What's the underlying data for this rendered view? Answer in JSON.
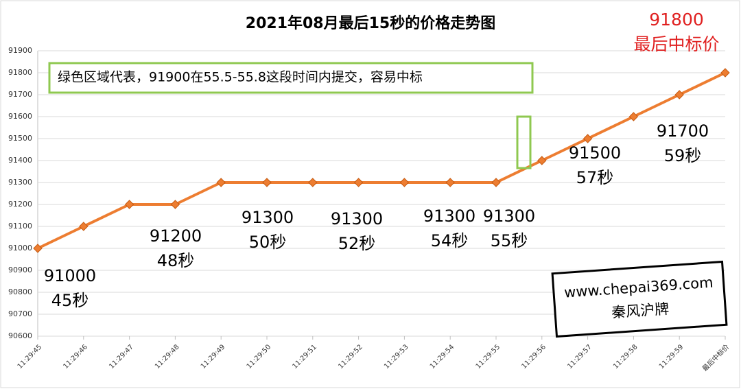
{
  "chart_data": {
    "type": "line",
    "title": "2021年08月最后15秒的价格走势图",
    "categories": [
      "11:29:45",
      "11:29:46",
      "11:29:47",
      "11:29:48",
      "11:29:49",
      "11:29:50",
      "11:29:51",
      "11:29:52",
      "11:29:53",
      "11:29:54",
      "11:29:55",
      "11:29:56",
      "11:29:57",
      "11:29:58",
      "11:29:59",
      "最后中标价"
    ],
    "values": [
      91000,
      91100,
      91200,
      91200,
      91300,
      91300,
      91300,
      91300,
      91300,
      91300,
      91300,
      91400,
      91500,
      91600,
      91700,
      91800
    ],
    "color": "#ed7d31",
    "ylim": [
      90600,
      91900
    ],
    "yticks": [
      90600,
      90700,
      90800,
      90900,
      91000,
      91100,
      91200,
      91300,
      91400,
      91500,
      91600,
      91700,
      91800,
      91900
    ],
    "grid": true,
    "annotations": [
      [
        "91000",
        "45秒"
      ],
      [
        "91200",
        "48秒"
      ],
      [
        "91300",
        "50秒"
      ],
      [
        "91300",
        "52秒"
      ],
      [
        "91300",
        "54秒"
      ],
      [
        "91300",
        "55秒"
      ],
      [
        "91500",
        "57秒"
      ],
      [
        "91700",
        "59秒"
      ]
    ],
    "note": "绿色区域代表，91900在55.5-55.8这段时间内提交，容易中标",
    "final_label": [
      "91800",
      "最后中标价"
    ],
    "watermark": [
      "www.chepai369.com",
      "秦风沪牌"
    ]
  }
}
